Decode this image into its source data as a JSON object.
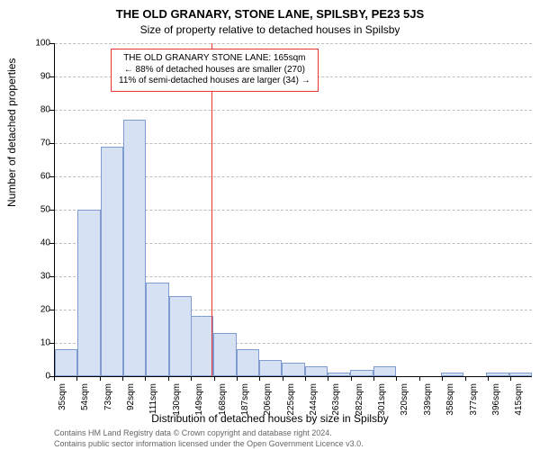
{
  "title_main": "THE OLD GRANARY, STONE LANE, SPILSBY, PE23 5JS",
  "title_sub": "Size of property relative to detached houses in Spilsby",
  "ylabel": "Number of detached properties",
  "xlabel": "Distribution of detached houses by size in Spilsby",
  "footer1": "Contains HM Land Registry data © Crown copyright and database right 2024.",
  "footer2": "Contains public sector information licensed under the Open Government Licence v3.0.",
  "callout": {
    "line1": "THE OLD GRANARY STONE LANE: 165sqm",
    "line2": "← 88% of detached houses are smaller (270)",
    "line3": "11% of semi-detached houses are larger (34) →",
    "border_color": "#ee3333"
  },
  "chart": {
    "type": "histogram",
    "ylim": [
      0,
      100
    ],
    "ytick_step": 10,
    "xlim": [
      35,
      432
    ],
    "xtick_start": 35,
    "xtick_step": 19,
    "xtick_count": 21,
    "xtick_suffix": "sqm",
    "bar_color": "#d6e2f4",
    "bar_border_color": "#7e9ccf",
    "grid_color": "#bfbfbf",
    "vline_x": 165,
    "vline_color": "#ee3333",
    "bars": [
      {
        "x": 35,
        "h": 8
      },
      {
        "x": 54,
        "h": 50
      },
      {
        "x": 73,
        "h": 69
      },
      {
        "x": 92,
        "h": 77
      },
      {
        "x": 111,
        "h": 28
      },
      {
        "x": 130,
        "h": 24
      },
      {
        "x": 148,
        "h": 18
      },
      {
        "x": 167,
        "h": 13
      },
      {
        "x": 186,
        "h": 8
      },
      {
        "x": 205,
        "h": 5
      },
      {
        "x": 224,
        "h": 4
      },
      {
        "x": 243,
        "h": 3
      },
      {
        "x": 262,
        "h": 1
      },
      {
        "x": 281,
        "h": 2
      },
      {
        "x": 300,
        "h": 3
      },
      {
        "x": 317,
        "h": 0
      },
      {
        "x": 337,
        "h": 0
      },
      {
        "x": 356,
        "h": 1
      },
      {
        "x": 375,
        "h": 0
      },
      {
        "x": 394,
        "h": 1
      },
      {
        "x": 413,
        "h": 1
      }
    ]
  }
}
